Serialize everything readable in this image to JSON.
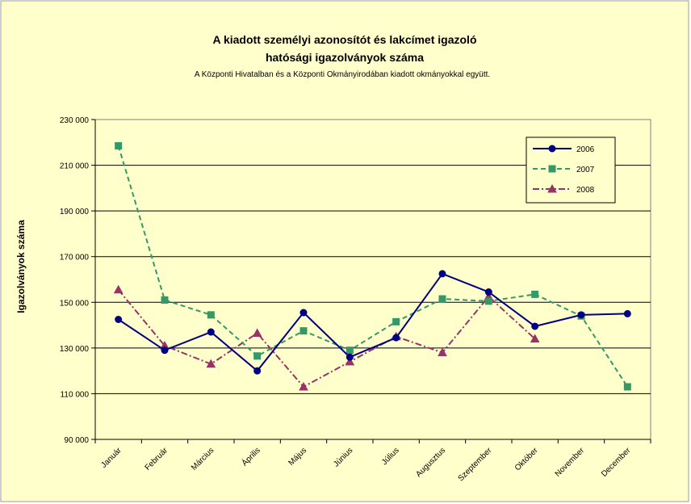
{
  "colors": {
    "background": "#FFFFCC",
    "plot_background": "#FFFFCC",
    "border": "#9E9E9E",
    "gridline": "#000000",
    "series_2006": "#000080",
    "series_2007": "#339966",
    "series_2008": "#993366"
  },
  "chart_data": {
    "type": "line",
    "title": "A kiadott személyi azonosítót és lakcímet igazoló",
    "title_line2": "hatósági igazolványok száma",
    "subtitle": "A Központi Hivatalban és a Központi Okmányirodában kiadott okmányokkal együtt.",
    "xlabel": "",
    "ylabel": "Igazolványok száma",
    "ylim": [
      90000,
      230000
    ],
    "yticks": [
      90000,
      110000,
      130000,
      150000,
      170000,
      190000,
      210000,
      230000
    ],
    "ytick_labels": [
      "90 000",
      "110 000",
      "130 000",
      "150 000",
      "170 000",
      "190 000",
      "210 000",
      "230 000"
    ],
    "grid": true,
    "legend_position": "top-right",
    "categories": [
      "Január",
      "Február",
      "Március",
      "Április",
      "Május",
      "Június",
      "Július",
      "Augusztus",
      "Szeptember",
      "Október",
      "November",
      "December"
    ],
    "series": [
      {
        "name": "2006",
        "color": "#000080",
        "marker": "circle",
        "dash": "solid",
        "values": [
          142500,
          129000,
          137000,
          120000,
          145500,
          126000,
          134500,
          162500,
          154500,
          139500,
          144500,
          145000
        ]
      },
      {
        "name": "2007",
        "color": "#339966",
        "marker": "square",
        "dash": "dashed",
        "values": [
          218500,
          151000,
          144500,
          126500,
          137500,
          129000,
          141500,
          151500,
          150500,
          153500,
          144000,
          113000
        ]
      },
      {
        "name": "2008",
        "color": "#993366",
        "marker": "triangle",
        "dash": "dashdot",
        "values": [
          155500,
          131000,
          123000,
          136500,
          113000,
          124000,
          135000,
          128000,
          152500,
          134000,
          null,
          null
        ]
      }
    ]
  }
}
